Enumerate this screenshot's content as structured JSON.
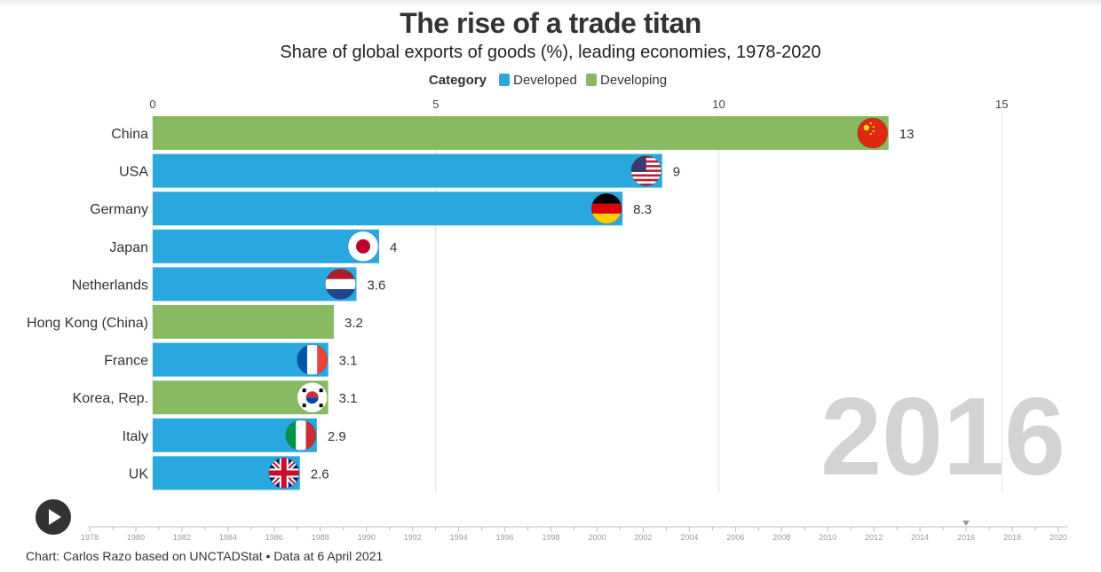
{
  "title": "The rise of a trade titan",
  "subtitle": "Share of global exports of goods (%), leading economies, 1978-2020",
  "legend": {
    "title": "Category",
    "items": [
      {
        "label": "Developed",
        "color": "#29a8e0"
      },
      {
        "label": "Developing",
        "color": "#88bb61"
      }
    ]
  },
  "current_year": "2016",
  "footer": "Chart: Carlos Razo based on UNCTADStat • Data at 6 April 2021",
  "play_button": {
    "icon": "play-icon"
  },
  "timeline": {
    "years": [
      "1978",
      "1980",
      "1982",
      "1984",
      "1986",
      "1988",
      "1990",
      "1992",
      "1994",
      "1996",
      "1998",
      "2000",
      "2002",
      "2004",
      "2006",
      "2008",
      "2010",
      "2012",
      "2014",
      "2016",
      "2018",
      "2020"
    ],
    "selected": "2016"
  },
  "chart_data": {
    "type": "bar",
    "orientation": "horizontal",
    "xlim": [
      0,
      15
    ],
    "xticks": [
      0,
      5,
      10,
      15
    ],
    "grid": true,
    "legend_position": "top",
    "categories": [
      "China",
      "USA",
      "Germany",
      "Japan",
      "Netherlands",
      "Hong Kong (China)",
      "France",
      "Korea, Rep.",
      "Italy",
      "UK"
    ],
    "values": [
      13,
      9,
      8.3,
      4,
      3.6,
      3.2,
      3.1,
      3.1,
      2.9,
      2.6
    ],
    "labels": [
      "13",
      "9",
      "8.3",
      "4",
      "3.6",
      "3.2",
      "3.1",
      "3.1",
      "2.9",
      "2.6"
    ],
    "groups": [
      "Developing",
      "Developed",
      "Developed",
      "Developed",
      "Developed",
      "Developing",
      "Developed",
      "Developing",
      "Developed",
      "Developed"
    ],
    "flags": [
      "china-flag-icon",
      "usa-flag-icon",
      "germany-flag-icon",
      "japan-flag-icon",
      "netherlands-flag-icon",
      "",
      "france-flag-icon",
      "korea-flag-icon",
      "italy-flag-icon",
      "uk-flag-icon"
    ]
  }
}
